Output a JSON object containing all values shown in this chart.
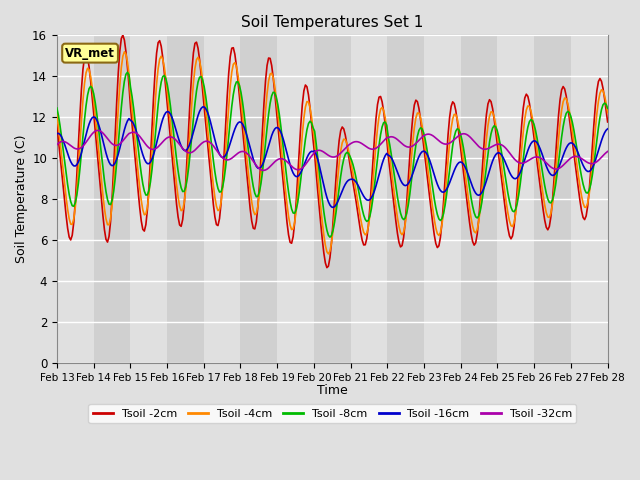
{
  "title": "Soil Temperatures Set 1",
  "xlabel": "Time",
  "ylabel": "Soil Temperature (C)",
  "ylim": [
    0,
    16
  ],
  "yticks": [
    0,
    2,
    4,
    6,
    8,
    10,
    12,
    14,
    16
  ],
  "xtick_labels": [
    "Feb 13",
    "Feb 14",
    "Feb 15",
    "Feb 16",
    "Feb 17",
    "Feb 18",
    "Feb 19",
    "Feb 20",
    "Feb 21",
    "Feb 22",
    "Feb 23",
    "Feb 24",
    "Feb 25",
    "Feb 26",
    "Feb 27",
    "Feb 28"
  ],
  "fig_bg_color": "#e0e0e0",
  "plot_bg_color": "#d0d0d0",
  "plot_bg_light": "#e0e0e0",
  "annotation_text": "VR_met",
  "annotation_box_color": "#ffff99",
  "annotation_box_edge": "#8b6914",
  "series": [
    {
      "label": "Tsoil -2cm",
      "color": "#cc0000",
      "lw": 1.2
    },
    {
      "label": "Tsoil -4cm",
      "color": "#ff8800",
      "lw": 1.2
    },
    {
      "label": "Tsoil -8cm",
      "color": "#00bb00",
      "lw": 1.2
    },
    {
      "label": "Tsoil -16cm",
      "color": "#0000cc",
      "lw": 1.2
    },
    {
      "label": "Tsoil -32cm",
      "color": "#aa00aa",
      "lw": 1.2
    }
  ]
}
